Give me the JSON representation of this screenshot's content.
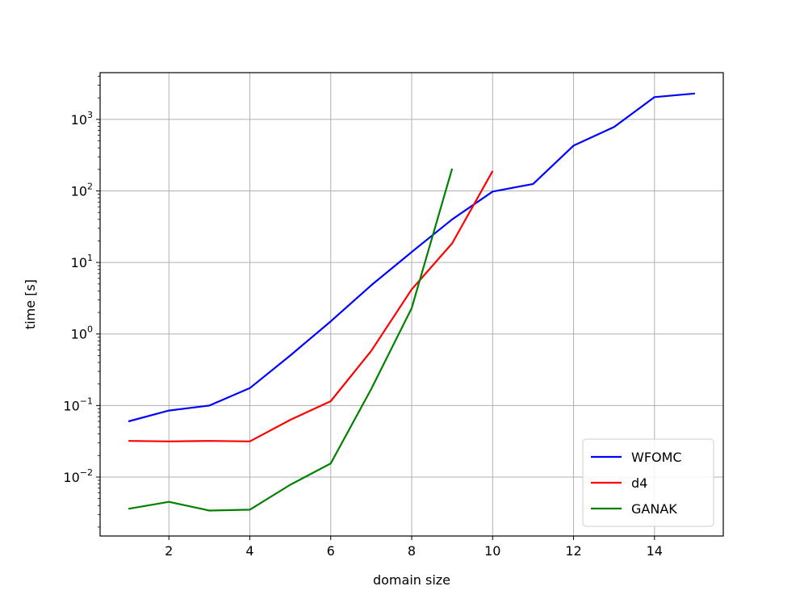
{
  "chart_data": {
    "type": "line",
    "title": "",
    "xlabel": "domain size",
    "ylabel": "time [s]",
    "xlim": [
      0.3,
      15.7
    ],
    "ylim": [
      0.0015,
      4500
    ],
    "yscale": "log",
    "grid": true,
    "legend_position": "bottom-right",
    "x_ticks": [
      2,
      4,
      6,
      8,
      10,
      12,
      14
    ],
    "y_ticks": [
      {
        "value": 0.01,
        "base": "10",
        "exp": "−2"
      },
      {
        "value": 0.1,
        "base": "10",
        "exp": "−1"
      },
      {
        "value": 1,
        "base": "10",
        "exp": "0"
      },
      {
        "value": 10,
        "base": "10",
        "exp": "1"
      },
      {
        "value": 100,
        "base": "10",
        "exp": "2"
      },
      {
        "value": 1000,
        "base": "10",
        "exp": "3"
      }
    ],
    "series": [
      {
        "name": "WFOMC",
        "color": "#0000ff",
        "x": [
          1,
          2,
          3,
          4,
          5,
          6,
          7,
          8,
          9,
          10,
          11,
          12,
          13,
          14,
          15
        ],
        "y": [
          0.06,
          0.085,
          0.1,
          0.175,
          0.5,
          1.5,
          4.8,
          14,
          40,
          98,
          125,
          430,
          780,
          2050,
          2300
        ]
      },
      {
        "name": "d4",
        "color": "#ff0000",
        "x": [
          1,
          2,
          3,
          4,
          5,
          6,
          7,
          8,
          9,
          10
        ],
        "y": [
          0.032,
          0.0315,
          0.032,
          0.0315,
          0.063,
          0.115,
          0.58,
          4.2,
          18.5,
          190
        ]
      },
      {
        "name": "GANAK",
        "color": "#008000",
        "x": [
          1,
          2,
          3,
          4,
          5,
          6,
          7,
          8,
          9
        ],
        "y": [
          0.0036,
          0.0045,
          0.0034,
          0.0035,
          0.0078,
          0.0155,
          0.17,
          2.3,
          205
        ]
      }
    ]
  }
}
